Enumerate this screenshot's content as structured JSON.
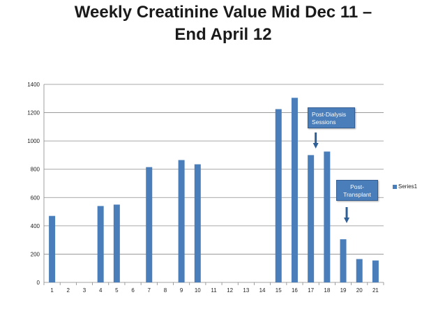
{
  "title": {
    "line1": "Weekly Creatinine Value Mid Dec 11 –",
    "line2": "End April 12"
  },
  "chart_data": {
    "type": "bar",
    "categories": [
      "1",
      "2",
      "3",
      "4",
      "5",
      "6",
      "7",
      "8",
      "9",
      "10",
      "11",
      "12",
      "13",
      "14",
      "15",
      "16",
      "17",
      "18",
      "19",
      "20",
      "21"
    ],
    "series": [
      {
        "name": "Series1",
        "values": [
          470,
          null,
          null,
          540,
          550,
          null,
          815,
          null,
          865,
          835,
          null,
          null,
          null,
          null,
          1225,
          1305,
          900,
          925,
          305,
          165,
          155
        ]
      }
    ],
    "ylim": [
      0,
      1400
    ],
    "yticks": [
      0,
      200,
      400,
      600,
      800,
      1000,
      1200,
      1400
    ],
    "grid": true,
    "legend": "right",
    "bar_color": "#4a7ebb",
    "annotations": [
      {
        "text_line1": "Post-Dialysis",
        "text_line2": "Sessions",
        "points_to_category": "17"
      },
      {
        "text_line1": "Post-",
        "text_line2": "Transplant",
        "points_to_category": "19"
      }
    ]
  }
}
